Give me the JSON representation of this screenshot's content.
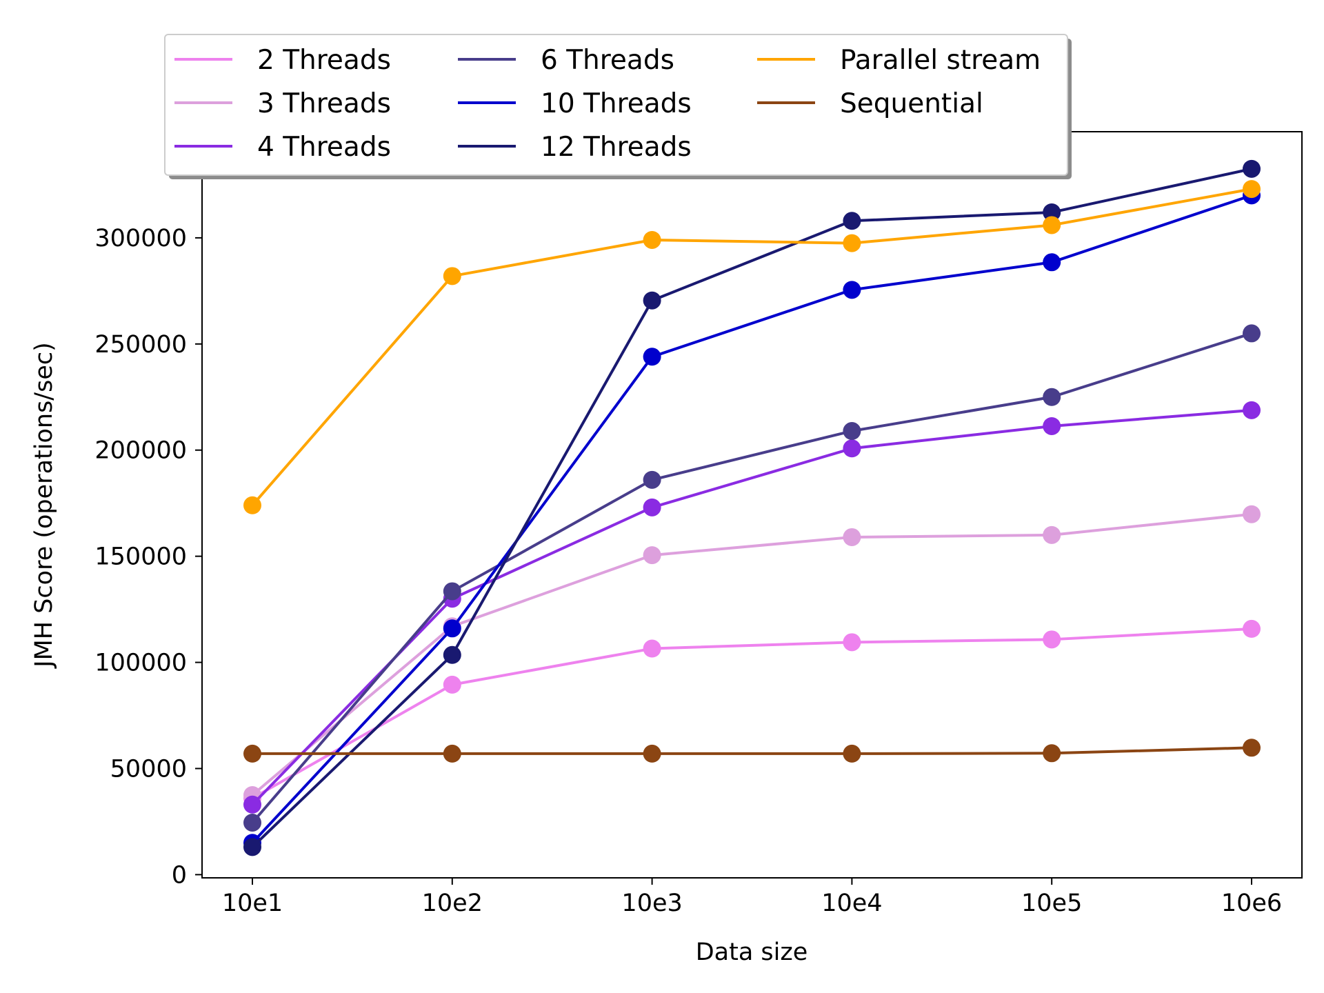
{
  "chart_data": {
    "type": "line",
    "title": "",
    "xlabel": "Data size",
    "ylabel": "JMH Score (operations/sec)",
    "categories": [
      "10e1",
      "10e2",
      "10e3",
      "10e4",
      "10e5",
      "10e6"
    ],
    "yticks": [
      0,
      50000,
      100000,
      150000,
      200000,
      250000,
      300000
    ],
    "ylim": [
      -1500,
      350000
    ],
    "grid": false,
    "legend_placement": "top, above plot",
    "series": [
      {
        "name": "2 Threads",
        "color": "#EE82EE",
        "values": [
          36000,
          89500,
          106500,
          109500,
          110800,
          115800
        ]
      },
      {
        "name": "3 Threads",
        "color": "#DDA0DD",
        "values": [
          37500,
          117000,
          150500,
          159000,
          160000,
          169800
        ]
      },
      {
        "name": "4 Threads",
        "color": "#8A2BE2",
        "values": [
          33000,
          130000,
          173000,
          200800,
          211300,
          218800
        ]
      },
      {
        "name": "6 Threads",
        "color": "#483D8B",
        "values": [
          24500,
          133500,
          186000,
          209000,
          225000,
          255000
        ]
      },
      {
        "name": "10 Threads",
        "color": "#0000CD",
        "values": [
          15000,
          116000,
          244000,
          275500,
          288500,
          320000
        ]
      },
      {
        "name": "12 Threads",
        "color": "#191970",
        "values": [
          13000,
          103500,
          270500,
          308000,
          312000,
          332500
        ]
      },
      {
        "name": "Parallel stream",
        "color": "#FFA500",
        "values": [
          174000,
          282000,
          299000,
          297500,
          306000,
          323000
        ]
      },
      {
        "name": "Sequential",
        "color": "#8B4513",
        "values": [
          57000,
          57000,
          57000,
          57000,
          57200,
          59800
        ]
      }
    ]
  }
}
